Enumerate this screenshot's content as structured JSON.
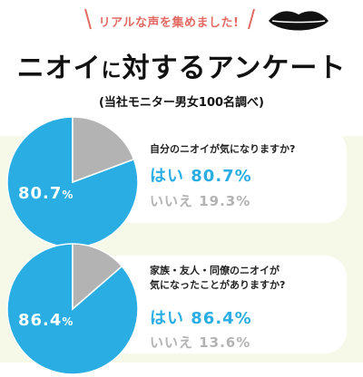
{
  "header": {
    "tagline": "リアルな声を集めました!",
    "title_main": "ニオイ",
    "title_small": "に",
    "title_rest": "対するアンケート",
    "subtitle": "(当社モニター男女100名調べ)"
  },
  "colors": {
    "pie_yes": "#29ade3",
    "pie_no": "#b3b3b3",
    "accent_red": "#e36a63",
    "background_lower": "#f6f8e8"
  },
  "chart_data": [
    {
      "type": "pie",
      "question": "自分のニオイが気になりますか?",
      "categories": [
        "はい",
        "いいえ"
      ],
      "values": [
        80.7,
        19.3
      ],
      "center_label": "80.7",
      "center_unit": "%",
      "yes_text": "はい 80.7%",
      "no_text": "いいえ 19.3%"
    },
    {
      "type": "pie",
      "question_line1": "家族・友人・同僚のニオイが",
      "question_line2": "気になったことがありますか?",
      "categories": [
        "はい",
        "いいえ"
      ],
      "values": [
        86.4,
        13.6
      ],
      "center_label": "86.4",
      "center_unit": "%",
      "yes_text": "はい 86.4%",
      "no_text": "いいえ 13.6%"
    }
  ]
}
